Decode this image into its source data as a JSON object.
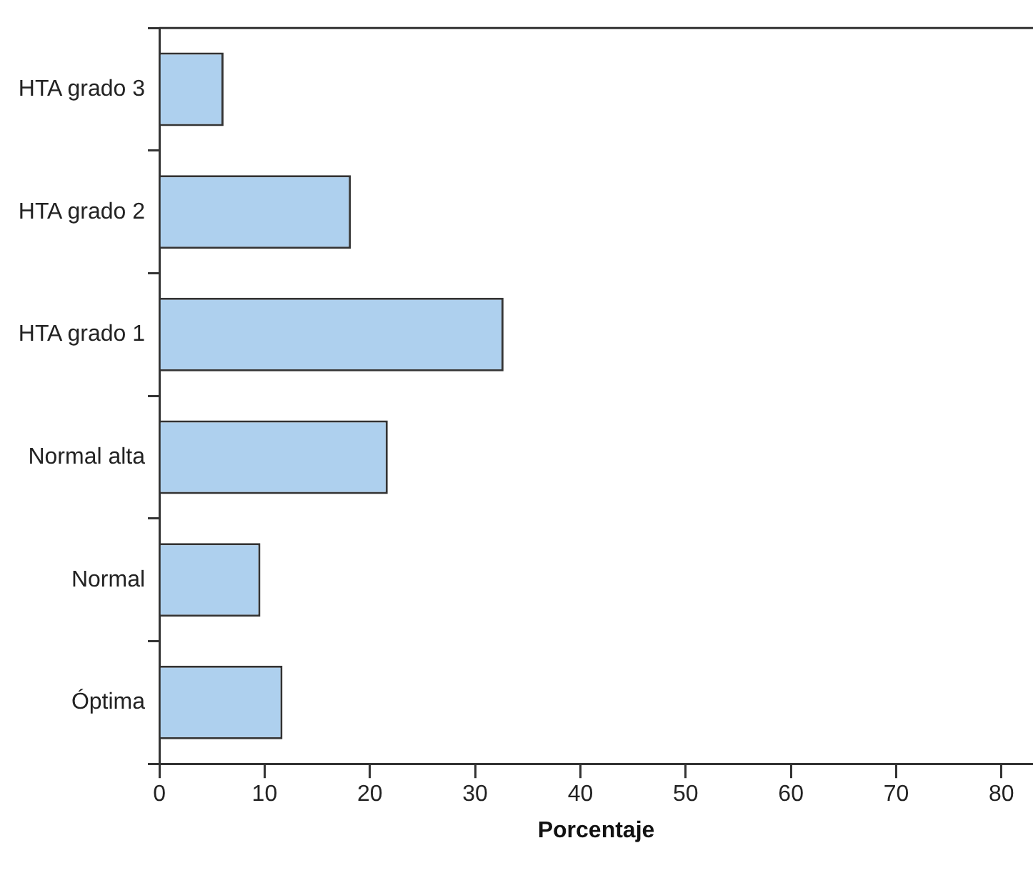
{
  "chart_data": {
    "type": "bar",
    "orientation": "horizontal",
    "xlabel": "Porcentaje",
    "categories": [
      "HTA grado 3",
      "HTA grado 2",
      "HTA grado 1",
      "Normal alta",
      "Normal",
      "Óptima"
    ],
    "values": [
      6.1,
      18.2,
      32.7,
      21.7,
      9.6,
      11.7
    ],
    "color": "#aed0ee",
    "xlim": [
      0,
      83
    ],
    "xticks": [
      0,
      10,
      20,
      30,
      40,
      50,
      60,
      70,
      80
    ],
    "grid": false,
    "legend": false
  }
}
